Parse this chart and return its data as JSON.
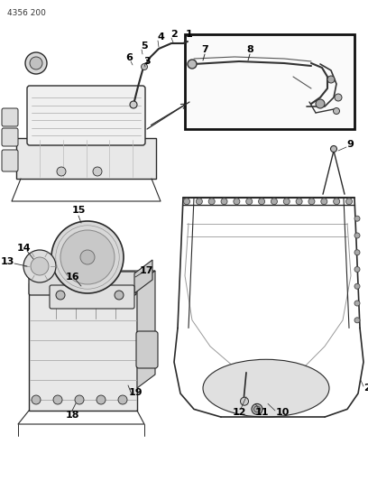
{
  "background_color": "#ffffff",
  "image_code": "4356 200",
  "line_color": "#2a2a2a",
  "label_color": "#000000",
  "figsize": [
    4.08,
    5.33
  ],
  "dpi": 100,
  "top_left_text": "4356 200",
  "gray_light": "#e8e8e8",
  "gray_mid": "#c0c0c0",
  "gray_dark": "#888888"
}
